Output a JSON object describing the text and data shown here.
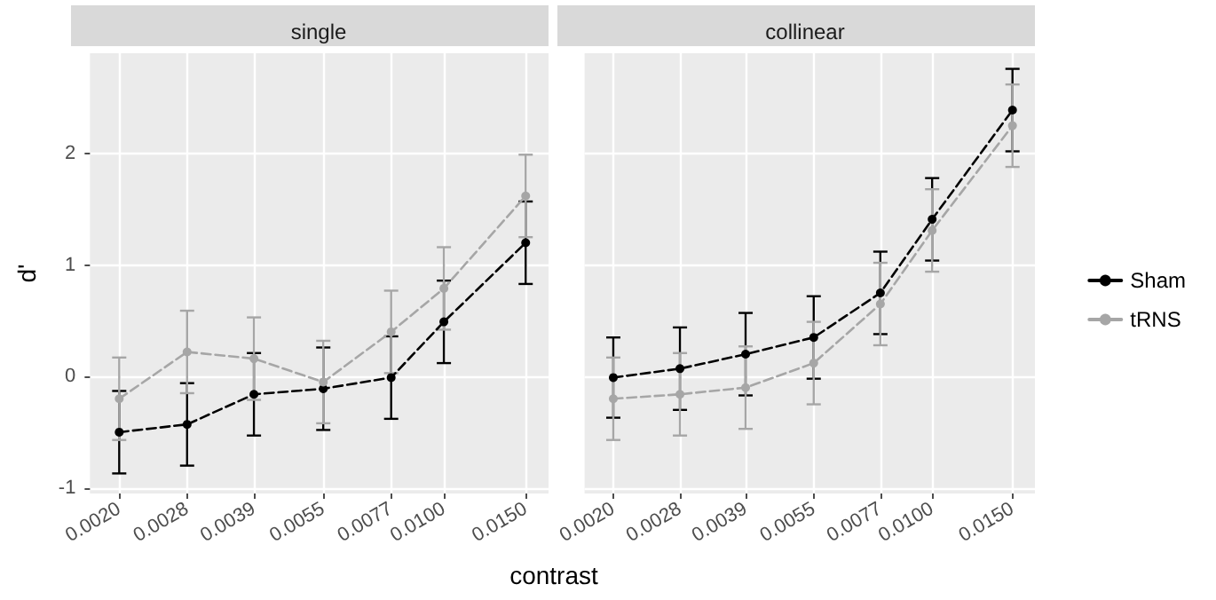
{
  "chart_data": [
    {
      "type": "line",
      "title": "single",
      "xlabel": "contrast",
      "ylabel": "d'",
      "x": [
        0.002,
        0.0028,
        0.0039,
        0.0055,
        0.0077,
        0.01,
        0.015
      ],
      "log": "x",
      "xlim": [
        0.00173,
        0.0168
      ],
      "xticks": [
        {
          "value": 0.002,
          "label": "0.0020"
        },
        {
          "value": 0.0028,
          "label": "0.0028"
        },
        {
          "value": 0.0039,
          "label": "0.0039"
        },
        {
          "value": 0.0055,
          "label": "0.0055"
        },
        {
          "value": 0.0077,
          "label": "0.0077"
        },
        {
          "value": 0.01,
          "label": "0.0100"
        },
        {
          "value": 0.015,
          "label": "0.0150"
        }
      ],
      "ylim": [
        -1.05,
        2.9
      ],
      "yticks": [
        -1,
        0,
        1,
        2
      ],
      "grid": true,
      "marker": "circle",
      "line_style": "dashed",
      "series": [
        {
          "color": "#000000",
          "values": [
            -0.5,
            -0.43,
            -0.16,
            -0.11,
            -0.01,
            0.49,
            1.2
          ],
          "errors": [
            0.37,
            0.37,
            0.37,
            0.37,
            0.37,
            0.37,
            0.37
          ]
        },
        {
          "color": "#a6a6a6",
          "values": [
            -0.2,
            0.22,
            0.16,
            -0.05,
            0.4,
            0.79,
            1.62
          ],
          "errors": [
            0.37,
            0.37,
            0.37,
            0.37,
            0.37,
            0.37,
            0.37
          ]
        }
      ]
    },
    {
      "type": "line",
      "title": "collinear",
      "x": [
        0.002,
        0.0028,
        0.0039,
        0.0055,
        0.0077,
        0.01,
        0.015
      ],
      "log": "x",
      "xlim": [
        0.00173,
        0.0168
      ],
      "xticks": [
        {
          "value": 0.002,
          "label": "0.0020"
        },
        {
          "value": 0.0028,
          "label": "0.0028"
        },
        {
          "value": 0.0039,
          "label": "0.0039"
        },
        {
          "value": 0.0055,
          "label": "0.0055"
        },
        {
          "value": 0.0077,
          "label": "0.0077"
        },
        {
          "value": 0.01,
          "label": "0.0100"
        },
        {
          "value": 0.015,
          "label": "0.0150"
        }
      ],
      "ylim": [
        -1.05,
        2.9
      ],
      "yticks": [
        -1,
        0,
        1,
        2
      ],
      "tick_labels": "x",
      "grid": true,
      "legend": "right",
      "marker": "circle",
      "line_style": "dashed",
      "series": [
        {
          "name": "Sham",
          "color": "#000000",
          "values": [
            -0.01,
            0.07,
            0.2,
            0.35,
            0.75,
            1.41,
            2.39
          ],
          "errors": [
            0.36,
            0.37,
            0.37,
            0.37,
            0.37,
            0.37,
            0.37
          ]
        },
        {
          "name": "tRNS",
          "color": "#a6a6a6",
          "values": [
            -0.2,
            -0.16,
            -0.1,
            0.12,
            0.65,
            1.31,
            2.25
          ],
          "errors": [
            0.37,
            0.37,
            0.37,
            0.37,
            0.37,
            0.37,
            0.37
          ]
        }
      ]
    }
  ]
}
